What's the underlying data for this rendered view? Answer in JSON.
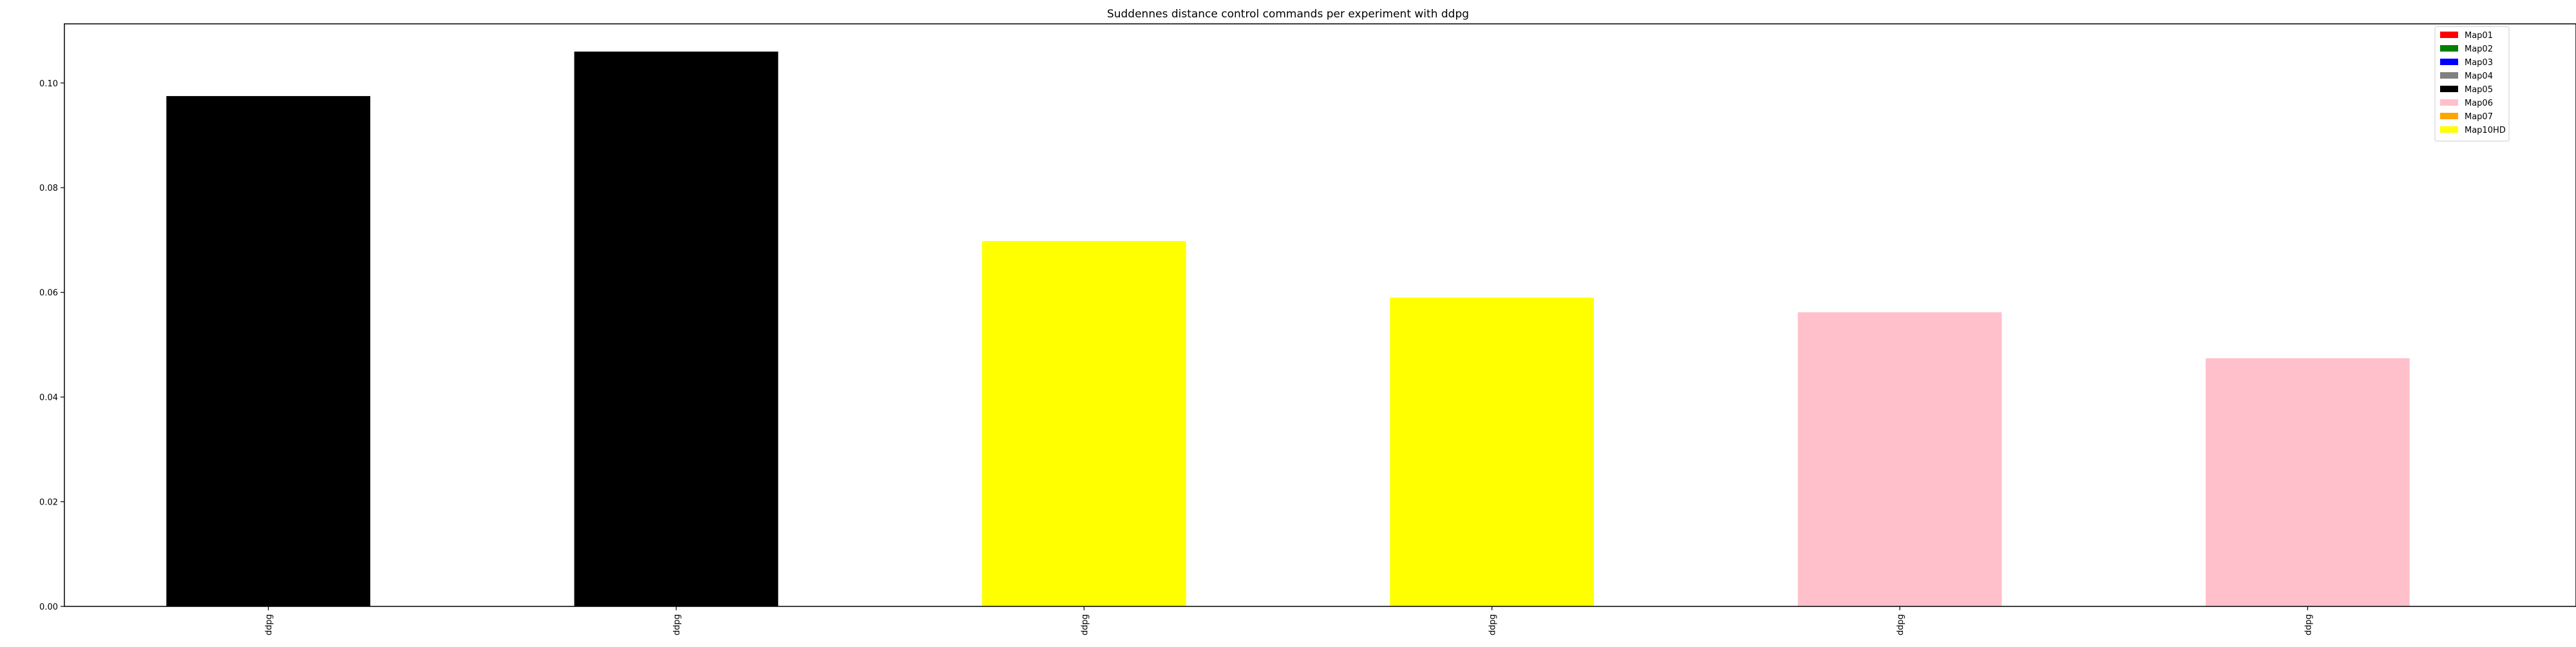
{
  "chart_data": {
    "type": "bar",
    "title": "Suddennes distance control commands per experiment with ddpg",
    "xlabel": "",
    "ylabel": "",
    "categories": [
      "ddpg",
      "ddpg",
      "ddpg",
      "ddpg",
      "ddpg",
      "ddpg"
    ],
    "values": [
      0.0975,
      0.106,
      0.0698,
      0.059,
      0.0562,
      0.0474
    ],
    "bar_colors": [
      "#000000",
      "#000000",
      "#ffff00",
      "#ffff00",
      "#ffc0cb",
      "#ffc0cb"
    ],
    "ylim": [
      0,
      0.1113
    ],
    "yticks": [
      0.0,
      0.02,
      0.04,
      0.06,
      0.08,
      0.1
    ],
    "ytick_labels": [
      "0.00",
      "0.02",
      "0.04",
      "0.06",
      "0.08",
      "0.10"
    ],
    "grid": false,
    "legend": {
      "placement": "top-right",
      "entries": [
        {
          "label": "Map01",
          "color": "#ff0000"
        },
        {
          "label": "Map02",
          "color": "#008000"
        },
        {
          "label": "Map03",
          "color": "#0000ff"
        },
        {
          "label": "Map04",
          "color": "#808080"
        },
        {
          "label": "Map05",
          "color": "#000000"
        },
        {
          "label": "Map06",
          "color": "#ffc0cb"
        },
        {
          "label": "Map07",
          "color": "#ffa500"
        },
        {
          "label": "Map10HD",
          "color": "#ffff00"
        }
      ]
    }
  }
}
